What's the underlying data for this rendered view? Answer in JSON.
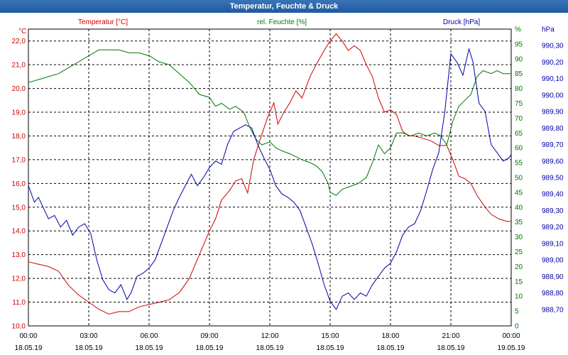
{
  "window": {
    "title": "Temperatur, Feuchte & Druck"
  },
  "chart_data": {
    "type": "line",
    "title": "Temperatur, Feuchte & Druck",
    "colors": {
      "temperature": "#cc0000",
      "humidity": "#007700",
      "pressure": "#0000aa"
    },
    "grid": true,
    "x_ticks": [
      {
        "time": "00:00",
        "date": "18.05.19",
        "hour": 0
      },
      {
        "time": "03:00",
        "date": "18.05.19",
        "hour": 3
      },
      {
        "time": "06:00",
        "date": "18.05.19",
        "hour": 6
      },
      {
        "time": "09:00",
        "date": "18.05.19",
        "hour": 9
      },
      {
        "time": "12:00",
        "date": "18.05.19",
        "hour": 12
      },
      {
        "time": "15:00",
        "date": "18.05.19",
        "hour": 15
      },
      {
        "time": "18:00",
        "date": "18.05.19",
        "hour": 18
      },
      {
        "time": "21:00",
        "date": "18.05.19",
        "hour": 21
      },
      {
        "time": "00:00",
        "date": "19.05.19",
        "hour": 24
      }
    ],
    "axes": {
      "temperature": {
        "label": "Temperatur [°C]",
        "unit": "°C",
        "min": 10.0,
        "max": 22.5,
        "ticks": [
          "10,0",
          "11,0",
          "12,0",
          "13,0",
          "14,0",
          "15,0",
          "16,0",
          "17,0",
          "18,0",
          "19,0",
          "20,0",
          "21,0",
          "22,0"
        ],
        "tick_values": [
          10,
          11,
          12,
          13,
          14,
          15,
          16,
          17,
          18,
          19,
          20,
          21,
          22
        ]
      },
      "humidity": {
        "label": "rel. Feuchte [%]",
        "unit": "%",
        "min": 0,
        "max": 100,
        "ticks": [
          "0",
          "5",
          "10",
          "15",
          "20",
          "25",
          "30",
          "35",
          "40",
          "45",
          "50",
          "55",
          "60",
          "65",
          "70",
          "75",
          "80",
          "85",
          "90",
          "95",
          "%"
        ],
        "tick_values": [
          0,
          5,
          10,
          15,
          20,
          25,
          30,
          35,
          40,
          45,
          50,
          55,
          60,
          65,
          70,
          75,
          80,
          85,
          90,
          95,
          100
        ]
      },
      "pressure": {
        "label": "Druck [hPa]",
        "unit": "hPa",
        "min": 988.6,
        "max": 990.4,
        "ticks": [
          "988,70",
          "988,80",
          "988,90",
          "989,00",
          "989,10",
          "989,20",
          "989,30",
          "989,40",
          "989,50",
          "989,60",
          "989,70",
          "989,80",
          "989,90",
          "990,00",
          "990,10",
          "990,20",
          "990,30",
          "hPa"
        ],
        "tick_values": [
          988.7,
          988.8,
          988.9,
          989.0,
          989.1,
          989.2,
          989.3,
          989.4,
          989.5,
          989.6,
          989.7,
          989.8,
          989.9,
          990.0,
          990.1,
          990.2,
          990.3,
          990.4
        ]
      }
    },
    "series": [
      {
        "name": "Temperatur [°C]",
        "axis": "temperature",
        "points": [
          [
            0,
            12.7
          ],
          [
            0.5,
            12.6
          ],
          [
            1,
            12.5
          ],
          [
            1.5,
            12.3
          ],
          [
            2,
            11.7
          ],
          [
            2.5,
            11.3
          ],
          [
            3,
            11.0
          ],
          [
            3.5,
            10.7
          ],
          [
            4,
            10.5
          ],
          [
            4.5,
            10.6
          ],
          [
            5,
            10.6
          ],
          [
            5.5,
            10.8
          ],
          [
            6,
            10.9
          ],
          [
            6.5,
            11.0
          ],
          [
            7,
            11.1
          ],
          [
            7.5,
            11.4
          ],
          [
            8,
            12.0
          ],
          [
            8.5,
            13.0
          ],
          [
            9,
            14.0
          ],
          [
            9.3,
            14.5
          ],
          [
            9.6,
            15.3
          ],
          [
            10,
            15.7
          ],
          [
            10.3,
            16.1
          ],
          [
            10.6,
            16.2
          ],
          [
            10.9,
            15.6
          ],
          [
            11.2,
            17.0
          ],
          [
            11.5,
            17.8
          ],
          [
            11.9,
            18.8
          ],
          [
            12.2,
            19.4
          ],
          [
            12.4,
            18.5
          ],
          [
            12.7,
            19.0
          ],
          [
            13.0,
            19.4
          ],
          [
            13.3,
            19.9
          ],
          [
            13.6,
            19.6
          ],
          [
            14.0,
            20.5
          ],
          [
            14.3,
            21.0
          ],
          [
            14.7,
            21.6
          ],
          [
            15.0,
            22.0
          ],
          [
            15.3,
            22.3
          ],
          [
            15.6,
            22.0
          ],
          [
            15.9,
            21.6
          ],
          [
            16.2,
            21.8
          ],
          [
            16.5,
            21.6
          ],
          [
            16.8,
            21.0
          ],
          [
            17.1,
            20.5
          ],
          [
            17.4,
            19.6
          ],
          [
            17.7,
            19.0
          ],
          [
            18.0,
            19.1
          ],
          [
            18.3,
            18.9
          ],
          [
            18.6,
            18.2
          ],
          [
            18.9,
            18.0
          ],
          [
            19.2,
            18.0
          ],
          [
            19.6,
            17.9
          ],
          [
            20.0,
            17.8
          ],
          [
            20.4,
            17.6
          ],
          [
            20.8,
            17.6
          ],
          [
            21.1,
            17.0
          ],
          [
            21.4,
            16.3
          ],
          [
            21.7,
            16.2
          ],
          [
            22.0,
            16.0
          ],
          [
            22.3,
            15.5
          ],
          [
            22.7,
            15.0
          ],
          [
            23.0,
            14.7
          ],
          [
            23.4,
            14.5
          ],
          [
            23.8,
            14.4
          ],
          [
            24,
            14.4
          ]
        ]
      },
      {
        "name": "rel. Feuchte [%]",
        "axis": "humidity",
        "points": [
          [
            0,
            82
          ],
          [
            0.5,
            83
          ],
          [
            1,
            84
          ],
          [
            1.5,
            85
          ],
          [
            2,
            87
          ],
          [
            2.5,
            89
          ],
          [
            3,
            91
          ],
          [
            3.5,
            93
          ],
          [
            4,
            93
          ],
          [
            4.5,
            93
          ],
          [
            5,
            92
          ],
          [
            5.5,
            92
          ],
          [
            6,
            91
          ],
          [
            6.5,
            89
          ],
          [
            7,
            88
          ],
          [
            7.5,
            85
          ],
          [
            8,
            82
          ],
          [
            8.5,
            78
          ],
          [
            9,
            77
          ],
          [
            9.3,
            74
          ],
          [
            9.6,
            75
          ],
          [
            10,
            73
          ],
          [
            10.3,
            74
          ],
          [
            10.7,
            72
          ],
          [
            11,
            67
          ],
          [
            11.3,
            63
          ],
          [
            11.6,
            61
          ],
          [
            12.0,
            62
          ],
          [
            12.3,
            60
          ],
          [
            12.6,
            59
          ],
          [
            13.0,
            58
          ],
          [
            13.3,
            57
          ],
          [
            13.6,
            56
          ],
          [
            14.0,
            55
          ],
          [
            14.3,
            54
          ],
          [
            14.6,
            52
          ],
          [
            14.9,
            48
          ],
          [
            15.0,
            45
          ],
          [
            15.3,
            44
          ],
          [
            15.6,
            46
          ],
          [
            16.0,
            47
          ],
          [
            16.4,
            48
          ],
          [
            16.8,
            50
          ],
          [
            17.1,
            55
          ],
          [
            17.4,
            61
          ],
          [
            17.7,
            58
          ],
          [
            18.0,
            60
          ],
          [
            18.3,
            65
          ],
          [
            18.6,
            65
          ],
          [
            19.0,
            64
          ],
          [
            19.4,
            65
          ],
          [
            19.8,
            64
          ],
          [
            20.2,
            65
          ],
          [
            20.5,
            64
          ],
          [
            20.8,
            61
          ],
          [
            21.1,
            69
          ],
          [
            21.4,
            74
          ],
          [
            21.7,
            76
          ],
          [
            22.0,
            78
          ],
          [
            22.3,
            84
          ],
          [
            22.6,
            86
          ],
          [
            23.0,
            85
          ],
          [
            23.3,
            86
          ],
          [
            23.6,
            85
          ],
          [
            24,
            85
          ]
        ]
      },
      {
        "name": "Druck [hPa]",
        "axis": "pressure",
        "points": [
          [
            0,
            989.45
          ],
          [
            0.3,
            989.35
          ],
          [
            0.5,
            989.38
          ],
          [
            0.8,
            989.3
          ],
          [
            1.0,
            989.25
          ],
          [
            1.3,
            989.27
          ],
          [
            1.6,
            989.2
          ],
          [
            1.9,
            989.24
          ],
          [
            2.2,
            989.15
          ],
          [
            2.5,
            989.2
          ],
          [
            2.8,
            989.22
          ],
          [
            3.1,
            989.16
          ],
          [
            3.4,
            989.0
          ],
          [
            3.7,
            988.88
          ],
          [
            4.0,
            988.82
          ],
          [
            4.3,
            988.8
          ],
          [
            4.6,
            988.85
          ],
          [
            4.9,
            988.76
          ],
          [
            5.1,
            988.8
          ],
          [
            5.4,
            988.9
          ],
          [
            5.7,
            988.92
          ],
          [
            6.0,
            988.95
          ],
          [
            6.3,
            989.0
          ],
          [
            6.6,
            989.1
          ],
          [
            6.9,
            989.2
          ],
          [
            7.2,
            989.3
          ],
          [
            7.5,
            989.38
          ],
          [
            7.8,
            989.45
          ],
          [
            8.1,
            989.52
          ],
          [
            8.4,
            989.45
          ],
          [
            8.7,
            989.5
          ],
          [
            9.0,
            989.56
          ],
          [
            9.3,
            989.6
          ],
          [
            9.6,
            989.58
          ],
          [
            9.9,
            989.7
          ],
          [
            10.2,
            989.78
          ],
          [
            10.5,
            989.8
          ],
          [
            10.8,
            989.82
          ],
          [
            11.1,
            989.8
          ],
          [
            11.4,
            989.7
          ],
          [
            11.7,
            989.62
          ],
          [
            12.0,
            989.55
          ],
          [
            12.3,
            989.45
          ],
          [
            12.6,
            989.4
          ],
          [
            12.9,
            989.38
          ],
          [
            13.2,
            989.35
          ],
          [
            13.5,
            989.3
          ],
          [
            13.8,
            989.2
          ],
          [
            14.1,
            989.1
          ],
          [
            14.4,
            988.98
          ],
          [
            14.7,
            988.85
          ],
          [
            15.0,
            988.75
          ],
          [
            15.3,
            988.7
          ],
          [
            15.6,
            988.78
          ],
          [
            15.9,
            988.8
          ],
          [
            16.2,
            988.76
          ],
          [
            16.5,
            988.8
          ],
          [
            16.8,
            988.78
          ],
          [
            17.1,
            988.85
          ],
          [
            17.4,
            988.9
          ],
          [
            17.7,
            988.95
          ],
          [
            18.0,
            988.98
          ],
          [
            18.3,
            989.05
          ],
          [
            18.6,
            989.15
          ],
          [
            18.9,
            989.2
          ],
          [
            19.2,
            989.22
          ],
          [
            19.5,
            989.3
          ],
          [
            19.8,
            989.42
          ],
          [
            20.1,
            989.55
          ],
          [
            20.4,
            989.65
          ],
          [
            20.7,
            989.9
          ],
          [
            21.0,
            990.25
          ],
          [
            21.3,
            990.2
          ],
          [
            21.6,
            990.12
          ],
          [
            21.9,
            990.28
          ],
          [
            22.1,
            990.2
          ],
          [
            22.4,
            989.95
          ],
          [
            22.7,
            989.9
          ],
          [
            23.0,
            989.7
          ],
          [
            23.3,
            989.65
          ],
          [
            23.6,
            989.6
          ],
          [
            23.9,
            989.62
          ],
          [
            24,
            989.64
          ]
        ]
      }
    ]
  }
}
